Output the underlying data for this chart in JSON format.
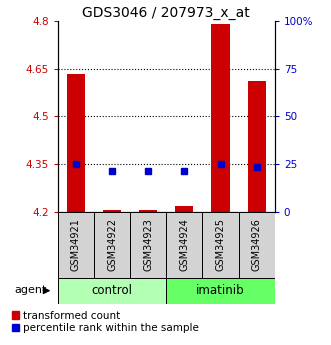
{
  "title": "GDS3046 / 207973_x_at",
  "samples": [
    "GSM34921",
    "GSM34922",
    "GSM34923",
    "GSM34924",
    "GSM34925",
    "GSM34926"
  ],
  "groups": [
    "control",
    "control",
    "control",
    "imatinib",
    "imatinib",
    "imatinib"
  ],
  "red_values": [
    4.634,
    4.208,
    4.207,
    4.218,
    4.791,
    4.61
  ],
  "blue_values": [
    4.352,
    4.328,
    4.328,
    4.328,
    4.352,
    4.34
  ],
  "ymin": 4.2,
  "ymax": 4.8,
  "y_ticks_left": [
    4.2,
    4.35,
    4.5,
    4.65,
    4.8
  ],
  "y_ticks_right_vals": [
    0,
    25,
    50,
    75,
    100
  ],
  "y_ticks_right_labels": [
    "0",
    "25",
    "50",
    "75",
    "100%"
  ],
  "bar_color": "#cc0000",
  "dot_color": "#0000cc",
  "control_color": "#b3ffb3",
  "imatinib_color": "#66ff66",
  "left_tick_color": "#cc0000",
  "right_tick_color": "#0000cc",
  "title_fontsize": 10,
  "tick_fontsize": 7.5,
  "legend_fontsize": 7.5,
  "sample_fontsize": 7,
  "bar_width": 0.5,
  "group_label_fontsize": 8.5,
  "agent_fontsize": 8
}
